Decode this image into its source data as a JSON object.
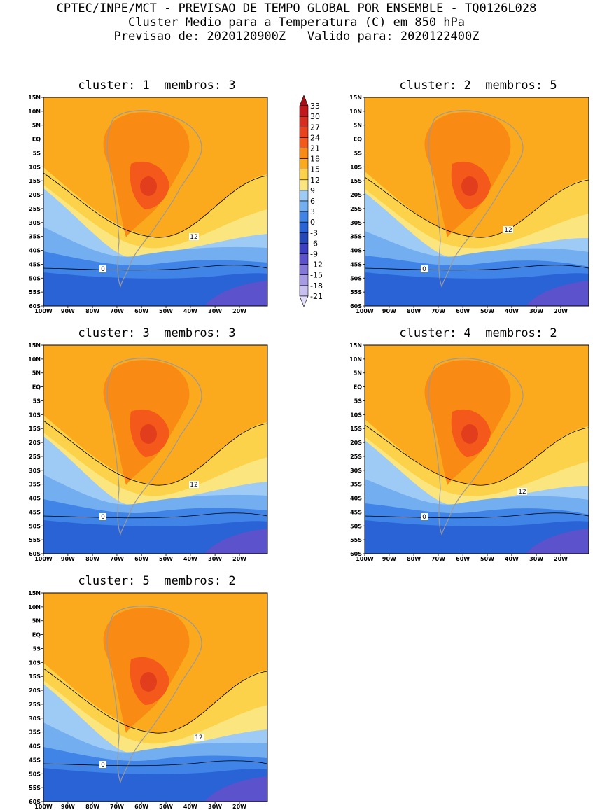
{
  "header": {
    "line1": "CPTEC/INPE/MCT - PREVISAO DE TEMPO GLOBAL POR ENSEMBLE - TQ0126L028",
    "line2": "Cluster Medio para a Temperatura (C) em 850 hPa",
    "line3": "Previsao de: 2020120900Z   Valido para: 2020122400Z"
  },
  "panels": [
    {
      "title": "cluster: 1  membros: 3"
    },
    {
      "title": "cluster: 2  membros: 5"
    },
    {
      "title": "cluster: 3  membros: 3"
    },
    {
      "title": "cluster: 4  membros: 2"
    },
    {
      "title": "cluster: 5  membros: 2"
    }
  ],
  "lat_labels": [
    "15N",
    "10N",
    "5N",
    "EQ",
    "5S",
    "10S",
    "15S",
    "20S",
    "25S",
    "30S",
    "35S",
    "40S",
    "45S",
    "50S",
    "55S",
    "60S"
  ],
  "lon_labels": [
    "100W",
    "90W",
    "80W",
    "70W",
    "60W",
    "50W",
    "40W",
    "30W",
    "20W"
  ],
  "colorbar": {
    "levels": [
      "33",
      "30",
      "27",
      "24",
      "21",
      "18",
      "15",
      "12",
      "9",
      "6",
      "3",
      "0",
      "-3",
      "-6",
      "-9",
      "-12",
      "-15",
      "-18",
      "-21"
    ],
    "colors": [
      "#a50f15",
      "#c0181b",
      "#d62d20",
      "#e8431c",
      "#f4581a",
      "#f98a14",
      "#fbaa1e",
      "#fcd24a",
      "#fbe57f",
      "#9ecbf5",
      "#72aef0",
      "#3f84e6",
      "#2a63d6",
      "#2448b8",
      "#3c3fbf",
      "#5b52cc",
      "#8478d8",
      "#a79ce4",
      "#c8c0ef",
      "#e2ddf8"
    ]
  },
  "contour_labels": {
    "c12": "12",
    "c0": "0"
  }
}
